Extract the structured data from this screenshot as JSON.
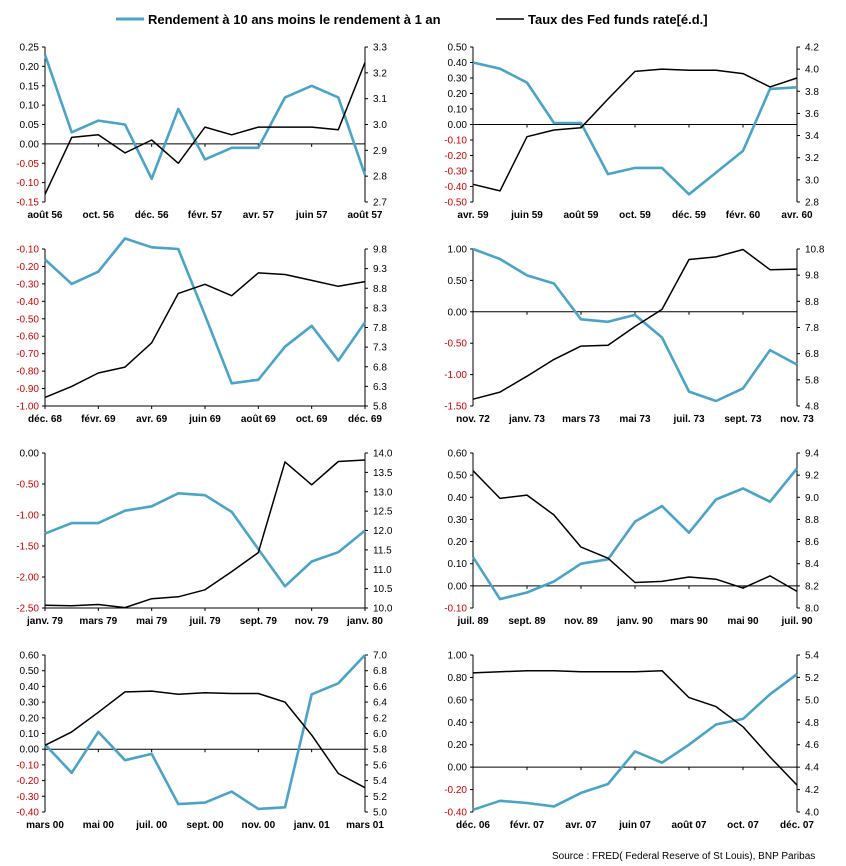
{
  "legend": {
    "spread_label": "Rendement à 10 ans moins le rendement à 1 an",
    "fed_label": "Taux des Fed funds rate[é.d.]"
  },
  "source": "Source : FRED( Federal Reserve of St Louis), BNP Paribas",
  "colors": {
    "spread": "#4BA3C7",
    "fed": "#000000",
    "negative_tick": "#d00000"
  },
  "chart_data": [
    {
      "type": "line",
      "x_ticks": [
        "août 56",
        "oct. 56",
        "déc. 56",
        "févr. 57",
        "avr. 57",
        "juin 57",
        "août 57"
      ],
      "left_ticks": [
        "0.25",
        "0.20",
        "0.15",
        "0.10",
        "0.05",
        "0.00",
        "-0.05",
        "-0.10",
        "-0.15"
      ],
      "right_ticks": [
        "3.3",
        "3.2",
        "3.1",
        "3.0",
        "2.9",
        "2.8",
        "2.7"
      ],
      "left_range": [
        -0.15,
        0.25
      ],
      "right_range": [
        2.7,
        3.3
      ],
      "series": [
        {
          "name": "Rendement à 10 ans moins le rendement à 1 an",
          "axis": "left",
          "values": [
            0.23,
            0.03,
            0.06,
            0.05,
            -0.09,
            0.09,
            -0.04,
            -0.01,
            -0.01,
            0.12,
            0.15,
            0.12,
            -0.08
          ]
        },
        {
          "name": "Taux des Fed funds rate[é.d.]",
          "axis": "right",
          "values": [
            2.73,
            2.95,
            2.96,
            2.89,
            2.94,
            2.85,
            2.99,
            2.96,
            2.99,
            2.99,
            2.99,
            2.98,
            3.24
          ]
        }
      ]
    },
    {
      "type": "line",
      "x_ticks": [
        "avr. 59",
        "juin 59",
        "août 59",
        "oct. 59",
        "déc. 59",
        "févr. 60",
        "avr. 60"
      ],
      "left_ticks": [
        "0.50",
        "0.40",
        "0.30",
        "0.20",
        "0.10",
        "0.00",
        "-0.10",
        "-0.20",
        "-0.30",
        "-0.40",
        "-0.50"
      ],
      "right_ticks": [
        "4.2",
        "4.0",
        "3.8",
        "3.6",
        "3.4",
        "3.2",
        "3.0",
        "2.8"
      ],
      "left_range": [
        -0.5,
        0.5
      ],
      "right_range": [
        2.8,
        4.2
      ],
      "series": [
        {
          "name": "Rendement à 10 ans moins le rendement à 1 an",
          "axis": "left",
          "values": [
            0.4,
            0.36,
            0.27,
            0.01,
            0.01,
            -0.32,
            -0.28,
            -0.28,
            -0.45,
            -0.31,
            -0.17,
            0.23,
            0.24
          ]
        },
        {
          "name": "Taux des Fed funds rate[é.d.]",
          "axis": "right",
          "values": [
            2.96,
            2.9,
            3.39,
            3.45,
            3.47,
            3.73,
            3.98,
            4.0,
            3.99,
            3.99,
            3.96,
            3.84,
            3.92
          ]
        }
      ]
    },
    {
      "type": "line",
      "x_ticks": [
        "déc. 68",
        "févr. 69",
        "avr. 69",
        "juin 69",
        "août 69",
        "oct. 69",
        "déc. 69"
      ],
      "left_ticks": [
        "-0.10",
        "-0.20",
        "-0.30",
        "-0.40",
        "-0.50",
        "-0.60",
        "-0.70",
        "-0.80",
        "-0.90",
        "-1.00"
      ],
      "right_ticks": [
        "9.8",
        "9.3",
        "8.8",
        "8.3",
        "7.8",
        "7.3",
        "6.8",
        "6.3",
        "5.8"
      ],
      "left_range": [
        -1.0,
        -0.1
      ],
      "right_range": [
        5.8,
        9.8
      ],
      "series": [
        {
          "name": "Rendement à 10 ans moins le rendement à 1 an",
          "axis": "left",
          "values": [
            -0.16,
            -0.3,
            -0.23,
            -0.04,
            -0.09,
            -0.1,
            -0.48,
            -0.87,
            -0.85,
            -0.66,
            -0.54,
            -0.74,
            -0.52
          ]
        },
        {
          "name": "Taux des Fed funds rate[é.d.]",
          "axis": "right",
          "values": [
            6.02,
            6.3,
            6.64,
            6.79,
            7.41,
            8.67,
            8.9,
            8.61,
            9.19,
            9.15,
            9.0,
            8.85,
            8.97
          ]
        }
      ]
    },
    {
      "type": "line",
      "x_ticks": [
        "nov. 72",
        "janv. 73",
        "mars 73",
        "mai 73",
        "juil. 73",
        "sept. 73",
        "nov. 73"
      ],
      "left_ticks": [
        "1.00",
        "0.50",
        "0.00",
        "-0.50",
        "-1.00",
        "-1.50"
      ],
      "right_ticks": [
        "10.8",
        "9.8",
        "8.8",
        "7.8",
        "6.8",
        "5.8",
        "4.8"
      ],
      "left_range": [
        -1.5,
        1.0
      ],
      "right_range": [
        4.8,
        10.8
      ],
      "series": [
        {
          "name": "Rendement à 10 ans moins le rendement à 1 an",
          "axis": "left",
          "values": [
            1.0,
            0.84,
            0.58,
            0.45,
            -0.12,
            -0.16,
            -0.05,
            -0.41,
            -1.27,
            -1.42,
            -1.22,
            -0.61,
            -0.84
          ]
        },
        {
          "name": "Taux des Fed funds rate[é.d.]",
          "axis": "right",
          "values": [
            5.06,
            5.33,
            5.94,
            6.58,
            7.09,
            7.12,
            7.84,
            8.49,
            10.4,
            10.5,
            10.78,
            10.01,
            10.03
          ]
        }
      ]
    },
    {
      "type": "line",
      "x_ticks": [
        "janv. 79",
        "mars 79",
        "mai 79",
        "juil. 79",
        "sept. 79",
        "nov. 79",
        "janv. 80"
      ],
      "left_ticks": [
        "0.00",
        "-0.50",
        "-1.00",
        "-1.50",
        "-2.00",
        "-2.50"
      ],
      "right_ticks": [
        "14.0",
        "13.5",
        "13.0",
        "12.5",
        "12.0",
        "11.5",
        "11.0",
        "10.5",
        "10.0"
      ],
      "left_range": [
        -2.5,
        0.0
      ],
      "right_range": [
        10.0,
        14.0
      ],
      "series": [
        {
          "name": "Rendement à 10 ans moins le rendement à 1 an",
          "axis": "left",
          "values": [
            -1.3,
            -1.13,
            -1.13,
            -0.93,
            -0.86,
            -0.65,
            -0.68,
            -0.95,
            -1.55,
            -2.15,
            -1.75,
            -1.6,
            -1.25
          ]
        },
        {
          "name": "Taux des Fed funds rate[é.d.]",
          "axis": "right",
          "values": [
            10.07,
            10.06,
            10.09,
            10.01,
            10.24,
            10.29,
            10.47,
            10.94,
            11.43,
            13.77,
            13.18,
            13.78,
            13.82
          ]
        }
      ]
    },
    {
      "type": "line",
      "x_ticks": [
        "juil. 89",
        "sept. 89",
        "nov. 89",
        "janv. 90",
        "mars 90",
        "mai 90",
        "juil. 90"
      ],
      "left_ticks": [
        "0.60",
        "0.50",
        "0.40",
        "0.30",
        "0.20",
        "0.10",
        "0.00",
        "-0.10"
      ],
      "right_ticks": [
        "9.4",
        "9.2",
        "9.0",
        "8.8",
        "8.6",
        "8.4",
        "8.2",
        "8.0"
      ],
      "left_range": [
        -0.1,
        0.6
      ],
      "right_range": [
        8.0,
        9.4
      ],
      "series": [
        {
          "name": "Rendement à 10 ans moins le rendement à 1 an",
          "axis": "left",
          "values": [
            0.13,
            -0.06,
            -0.03,
            0.02,
            0.1,
            0.12,
            0.29,
            0.36,
            0.24,
            0.39,
            0.44,
            0.38,
            0.53
          ]
        },
        {
          "name": "Taux des Fed funds rate[é.d.]",
          "axis": "right",
          "values": [
            9.24,
            8.99,
            9.02,
            8.84,
            8.55,
            8.45,
            8.23,
            8.24,
            8.28,
            8.26,
            8.18,
            8.29,
            8.15
          ]
        }
      ]
    },
    {
      "type": "line",
      "x_ticks": [
        "mars 00",
        "mai 00",
        "juil. 00",
        "sept. 00",
        "nov. 00",
        "janv. 01",
        "mars 01"
      ],
      "left_ticks": [
        "0.60",
        "0.50",
        "0.40",
        "0.30",
        "0.20",
        "0.10",
        "0.00",
        "-0.10",
        "-0.20",
        "-0.30",
        "-0.40"
      ],
      "right_ticks": [
        "7.0",
        "6.8",
        "6.6",
        "6.4",
        "6.2",
        "6.0",
        "5.8",
        "5.6",
        "5.4",
        "5.2",
        "5.0"
      ],
      "left_range": [
        -0.4,
        0.6
      ],
      "right_range": [
        5.0,
        7.0
      ],
      "series": [
        {
          "name": "Rendement à 10 ans moins le rendement à 1 an",
          "axis": "left",
          "values": [
            0.03,
            -0.15,
            0.11,
            -0.07,
            -0.03,
            -0.35,
            -0.34,
            -0.27,
            -0.38,
            -0.37,
            0.35,
            0.42,
            0.6
          ]
        },
        {
          "name": "Taux des Fed funds rate[é.d.]",
          "axis": "right",
          "values": [
            5.85,
            6.02,
            6.27,
            6.53,
            6.54,
            6.5,
            6.52,
            6.51,
            6.51,
            6.4,
            5.98,
            5.49,
            5.31
          ]
        }
      ]
    },
    {
      "type": "line",
      "x_ticks": [
        "déc. 06",
        "févr. 07",
        "avr. 07",
        "juin 07",
        "août 07",
        "oct. 07",
        "déc. 07"
      ],
      "left_ticks": [
        "1.00",
        "0.80",
        "0.60",
        "0.40",
        "0.20",
        "0.00",
        "-0.20",
        "-0.40"
      ],
      "right_ticks": [
        "5.4",
        "5.2",
        "5.0",
        "4.8",
        "4.6",
        "4.4",
        "4.2",
        "4.0"
      ],
      "left_range": [
        -0.4,
        1.0
      ],
      "right_range": [
        4.0,
        5.4
      ],
      "series": [
        {
          "name": "Rendement à 10 ans moins le rendement à 1 an",
          "axis": "left",
          "values": [
            -0.38,
            -0.3,
            -0.32,
            -0.35,
            -0.23,
            -0.15,
            0.14,
            0.04,
            0.2,
            0.38,
            0.43,
            0.65,
            0.83
          ]
        },
        {
          "name": "Taux des Fed funds rate[é.d.]",
          "axis": "right",
          "values": [
            5.24,
            5.25,
            5.26,
            5.26,
            5.25,
            5.25,
            5.25,
            5.26,
            5.02,
            4.94,
            4.76,
            4.49,
            4.24
          ]
        }
      ]
    }
  ]
}
